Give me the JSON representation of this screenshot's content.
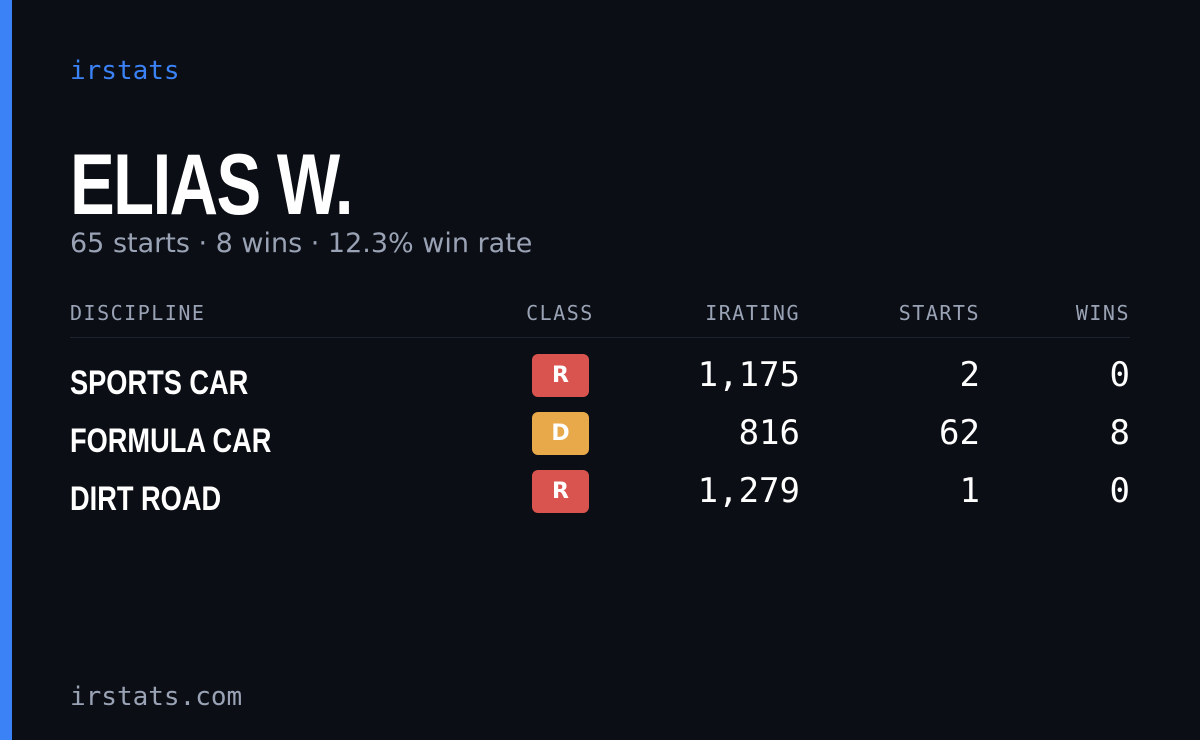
{
  "brand": "irstats",
  "header": {
    "name": "ELIAS W.",
    "summary": "65 starts · 8 wins · 12.3% win rate"
  },
  "table": {
    "columns": [
      "DISCIPLINE",
      "CLASS",
      "IRATING",
      "STARTS",
      "WINS"
    ],
    "rows": [
      {
        "discipline": "SPORTS CAR",
        "class": "R",
        "class_color": "#d9534f",
        "irating": "1,175",
        "starts": 2,
        "wins": 0
      },
      {
        "discipline": "FORMULA CAR",
        "class": "D",
        "class_color": "#e8a94a",
        "irating": "816",
        "starts": 62,
        "wins": 8
      },
      {
        "discipline": "DIRT ROAD",
        "class": "R",
        "class_color": "#d9534f",
        "irating": "1,279",
        "starts": 1,
        "wins": 0
      }
    ]
  },
  "footer": "irstats.com"
}
